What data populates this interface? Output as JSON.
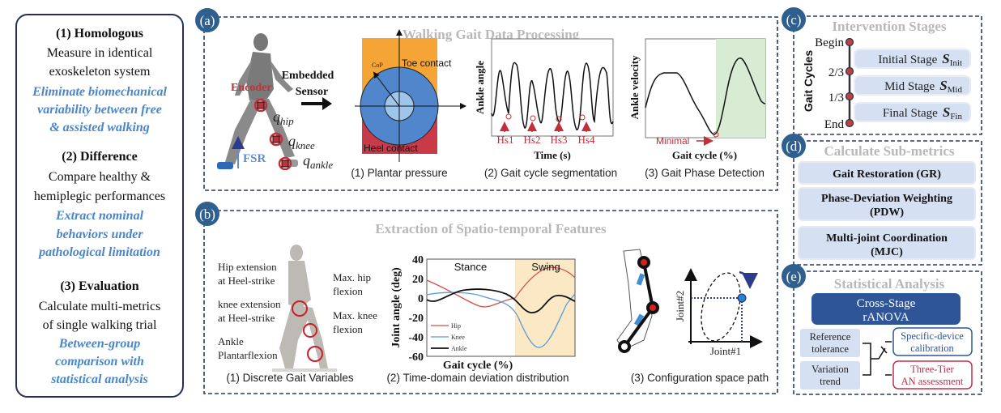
{
  "left_panel": {
    "sections": [
      {
        "heading": "(1) Homologous",
        "lines": [
          "Measure in identical",
          "exoskeleton system"
        ],
        "highlight": [
          "Eliminate biomechanical",
          "variability between free",
          "& assisted walking"
        ]
      },
      {
        "heading": "(2) Difference",
        "lines": [
          "Compare healthy &",
          "hemiplegic performances"
        ],
        "highlight": [
          "Extract nominal",
          "behaviors under",
          "pathological limitation"
        ]
      },
      {
        "heading": "(3) Evaluation",
        "lines": [
          "Calculate multi-metrics",
          "of single walking trial"
        ],
        "highlight": [
          "Between-group",
          "comparison with",
          "statistical analysis"
        ]
      }
    ]
  },
  "panel_a": {
    "badge": "(a)",
    "title": "Walking Gait Data Processing",
    "encoder": "Encoder",
    "fsr": "FSR",
    "joints": {
      "hip": "q",
      "hip_sub": "hip",
      "knee": "q",
      "knee_sub": "knee",
      "ankle": "q",
      "ankle_sub": "ankle"
    },
    "sensor_label": [
      "Embedded",
      "Sensor"
    ],
    "plantar": {
      "cop": "CoP",
      "toe": "Toe contact",
      "heel": "Heel contact",
      "caption": "(1) Plantar pressure"
    },
    "segmentation": {
      "ylabel": "Ankle angle",
      "xlabel": "Time (s)",
      "markers": [
        "Hs1",
        "Hs2",
        "Hs3",
        "Hs4"
      ],
      "caption": "(2) Gait cycle segmentation"
    },
    "phase": {
      "ylabel": "Ankle velocity",
      "xlabel": "Gait cycle (%)",
      "annotation": "Minimal",
      "caption": "(3) Gait Phase Detection"
    }
  },
  "panel_b": {
    "badge": "(b)",
    "title": "Extraction of Spatio-temporal Features",
    "variables": {
      "left": [
        [
          "Hip extension",
          "at Heel-strike"
        ],
        [
          "knee extension",
          "at Heel-strike"
        ],
        [
          "Ankle",
          "Plantarflexion"
        ]
      ],
      "right": [
        [
          "Max. hip",
          "flexion"
        ],
        [
          "Max. knee",
          "flexion"
        ]
      ],
      "caption": "(1) Discrete Gait Variables"
    },
    "joint_chart": {
      "ylabel": "Joint angle (deg)",
      "xlabel": "Gait cycle (%)",
      "yticks": [
        "40",
        "20",
        "0",
        "-20",
        "-40",
        "-60"
      ],
      "regions": [
        "Stance",
        "Swing"
      ],
      "legend": [
        "Hip",
        "Knee",
        "Ankle"
      ],
      "colors": {
        "hip": "#d0504a",
        "knee": "#5b9bd5",
        "ankle": "#111111",
        "swing": "#fbe9c6"
      },
      "caption": "(2) Time-domain deviation distribution"
    },
    "config": {
      "xlabel": "Joint#1",
      "ylabel": "Joint#2",
      "caption": "(3) Configuration space path"
    }
  },
  "panel_c": {
    "badge": "(c)",
    "title": "Intervention Stages",
    "axis_label": "Gait Cycles",
    "ticks": [
      "Begin",
      "2/3",
      "1/3",
      "End"
    ],
    "stages": [
      {
        "label": "Initial Stage",
        "symbol": "S",
        "sub": "Init"
      },
      {
        "label": "Mid Stage",
        "symbol": "S",
        "sub": "Mid"
      },
      {
        "label": "Final Stage",
        "symbol": "S",
        "sub": "Fin"
      }
    ]
  },
  "panel_d": {
    "badge": "(d)",
    "title": "Calculate Sub-metrics",
    "metrics": [
      [
        "Gait Restoration (GR)"
      ],
      [
        "Phase-Deviation Weighting",
        "(PDW)"
      ],
      [
        "Multi-joint Coordination",
        "(MJC)"
      ]
    ]
  },
  "panel_e": {
    "badge": "(e)",
    "title": "Statistical Analysis",
    "anova": [
      "Cross-Stage",
      "rANOVA"
    ],
    "inputs": [
      [
        "Reference",
        "tolerance"
      ],
      [
        "Variation",
        "trend"
      ]
    ],
    "outputs": [
      [
        "Specific-device",
        "calibration"
      ],
      [
        "Three-Tier",
        "AN assessment"
      ]
    ],
    "colors": {
      "anova": "#2d5597",
      "calibration": "#2d5597",
      "assessment": "#c0304a"
    }
  }
}
